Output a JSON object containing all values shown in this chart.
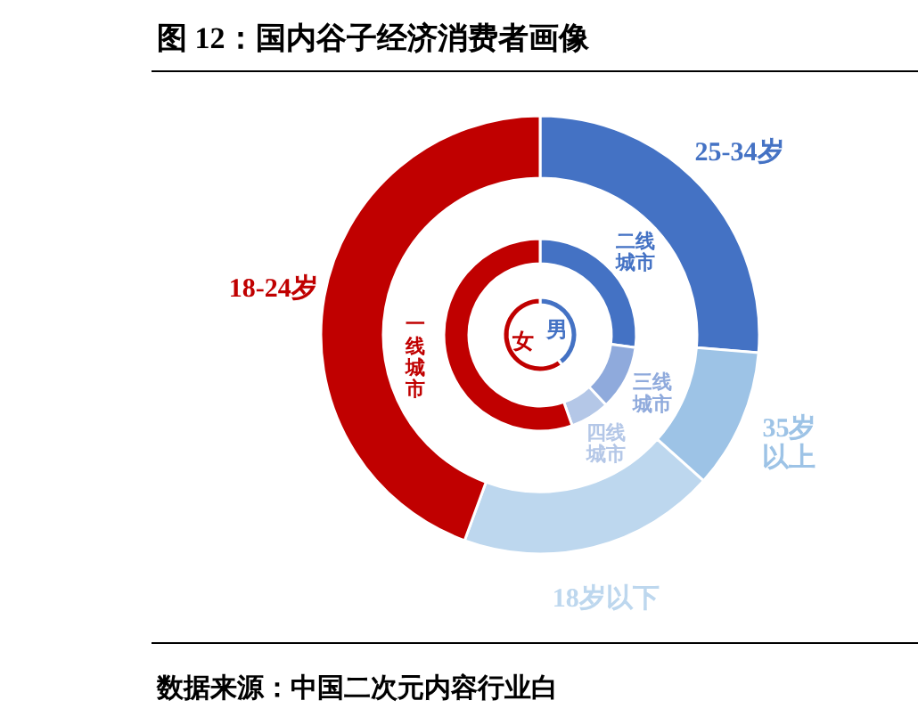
{
  "chart_data": [
    {
      "type": "donut",
      "title": "图 12：国内谷子经济消费者画像",
      "annotations": [
        "数据来源：中国二次元内容行业白"
      ],
      "categories": [
        "25-34岁",
        "35岁以上",
        "18岁以下",
        "18-24岁"
      ],
      "values": [
        26.3,
        10.3,
        19.0,
        44.4
      ],
      "colors": [
        "#4472c4",
        "#9dc3e6",
        "#bdd7ee",
        "#c00000"
      ],
      "legend": false
    },
    {
      "type": "donut",
      "categories": [
        "二线城市",
        "三线城市",
        "四线城市",
        "一线城市"
      ],
      "values": [
        27.1,
        10.9,
        6.6,
        55.4
      ],
      "colors": [
        "#4472c4",
        "#8faadc",
        "#b4c7e7",
        "#c00000"
      ],
      "legend": false
    },
    {
      "type": "donut",
      "categories": [
        "男",
        "女"
      ],
      "values": [
        40,
        60
      ],
      "colors": [
        "#4472c4",
        "#c00000"
      ],
      "legend": false
    }
  ]
}
